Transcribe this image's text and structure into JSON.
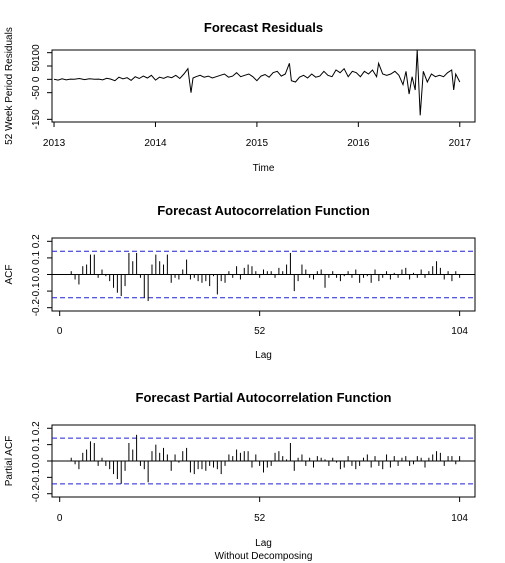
{
  "chart_data": [
    {
      "type": "line",
      "title": "Forecast Residuals",
      "xlabel": "Time",
      "ylabel": "52 Week Period Residuals",
      "xlim": [
        2013,
        2017
      ],
      "ylim": [
        -150,
        110
      ],
      "x_ticks": [
        2013,
        2014,
        2015,
        2016,
        2017
      ],
      "x_tick_labels": [
        "2013",
        "2014",
        "2015",
        "2016",
        "2017"
      ],
      "y_ticks": [
        -150,
        -50,
        0,
        50,
        100
      ],
      "y_tick_labels": [
        "-150",
        "-50",
        "0",
        "50",
        "100"
      ],
      "x": [
        2013.0,
        2013.04,
        2013.08,
        2013.12,
        2013.16,
        2013.2,
        2013.25,
        2013.3,
        2013.35,
        2013.4,
        2013.44,
        2013.48,
        2013.52,
        2013.56,
        2013.6,
        2013.64,
        2013.68,
        2013.72,
        2013.76,
        2013.8,
        2013.84,
        2013.88,
        2013.92,
        2013.96,
        2014.0,
        2014.04,
        2014.08,
        2014.12,
        2014.16,
        2014.2,
        2014.24,
        2014.28,
        2014.32,
        2014.35,
        2014.37,
        2014.4,
        2014.44,
        2014.48,
        2014.52,
        2014.56,
        2014.6,
        2014.64,
        2014.68,
        2014.72,
        2014.76,
        2014.8,
        2014.84,
        2014.88,
        2014.92,
        2014.96,
        2015.0,
        2015.04,
        2015.08,
        2015.12,
        2015.16,
        2015.2,
        2015.24,
        2015.28,
        2015.32,
        2015.34,
        2015.38,
        2015.42,
        2015.46,
        2015.5,
        2015.54,
        2015.58,
        2015.62,
        2015.66,
        2015.7,
        2015.74,
        2015.78,
        2015.82,
        2015.86,
        2015.9,
        2015.94,
        2015.98,
        2016.02,
        2016.06,
        2016.1,
        2016.14,
        2016.18,
        2016.2,
        2016.24,
        2016.28,
        2016.32,
        2016.36,
        2016.4,
        2016.44,
        2016.47,
        2016.5,
        2016.53,
        2016.56,
        2016.58,
        2016.61,
        2016.64,
        2016.68,
        2016.72,
        2016.76,
        2016.8,
        2016.84,
        2016.88,
        2016.92,
        2016.94,
        2016.96,
        2017.0
      ],
      "y": [
        0,
        -3,
        2,
        -2,
        1,
        0,
        3,
        -1,
        2,
        0,
        1,
        -2,
        4,
        1,
        -5,
        8,
        2,
        6,
        -4,
        10,
        3,
        12,
        5,
        15,
        -3,
        8,
        4,
        10,
        6,
        15,
        3,
        20,
        40,
        -50,
        5,
        10,
        15,
        8,
        12,
        5,
        10,
        15,
        20,
        8,
        12,
        25,
        10,
        15,
        20,
        10,
        -5,
        12,
        18,
        8,
        25,
        30,
        12,
        20,
        60,
        -5,
        -10,
        8,
        15,
        5,
        20,
        8,
        12,
        30,
        15,
        10,
        35,
        25,
        40,
        10,
        30,
        25,
        10,
        30,
        20,
        35,
        10,
        60,
        20,
        15,
        20,
        30,
        15,
        -20,
        30,
        -55,
        10,
        -40,
        110,
        -135,
        30,
        -10,
        20,
        10,
        15,
        10,
        25,
        35,
        -40,
        20,
        -10
      ]
    },
    {
      "type": "bar",
      "title": "Forecast Autocorrelation Function",
      "xlabel": "Lag",
      "ylabel": "ACF",
      "xlim": [
        0,
        104
      ],
      "ylim": [
        -0.2,
        0.2
      ],
      "x_ticks": [
        0,
        52,
        104
      ],
      "x_tick_labels": [
        "0",
        "52",
        "104"
      ],
      "y_ticks": [
        -0.2,
        -0.1,
        0.0,
        0.1,
        0.2
      ],
      "y_tick_labels": [
        "-0.2",
        "-0.1",
        "0.0",
        "0.1",
        "0.2"
      ],
      "conf_bound": 0.14,
      "lags": [
        3,
        4,
        5,
        6,
        7,
        8,
        9,
        10,
        11,
        12,
        13,
        14,
        15,
        16,
        17,
        18,
        19,
        20,
        21,
        22,
        23,
        24,
        25,
        26,
        27,
        28,
        29,
        30,
        31,
        32,
        33,
        34,
        35,
        36,
        37,
        38,
        39,
        40,
        41,
        42,
        43,
        44,
        45,
        46,
        47,
        48,
        49,
        50,
        51,
        52,
        53,
        54,
        55,
        56,
        57,
        58,
        59,
        60,
        61,
        62,
        63,
        64,
        65,
        66,
        67,
        68,
        69,
        70,
        71,
        72,
        73,
        74,
        75,
        76,
        77,
        78,
        79,
        80,
        81,
        82,
        83,
        84,
        85,
        86,
        87,
        88,
        89,
        90,
        91,
        92,
        93,
        94,
        95,
        96,
        97,
        98,
        99,
        100,
        101,
        102,
        103,
        104
      ],
      "values": [
        0.02,
        -0.03,
        -0.06,
        0.05,
        0.06,
        0.12,
        0.12,
        -0.02,
        0.03,
        -0.01,
        -0.04,
        -0.08,
        -0.11,
        -0.13,
        -0.07,
        0.13,
        0.08,
        0.13,
        -0.02,
        -0.14,
        -0.16,
        0.06,
        0.12,
        0.08,
        0.06,
        0.12,
        -0.05,
        -0.02,
        -0.03,
        0.03,
        0.09,
        -0.03,
        -0.02,
        -0.04,
        -0.05,
        -0.04,
        -0.07,
        -0.01,
        -0.12,
        -0.04,
        -0.05,
        0.02,
        -0.02,
        0.05,
        -0.03,
        0.04,
        0.06,
        0.05,
        0.02,
        -0.02,
        0.03,
        0.02,
        0.02,
        -0.02,
        0.04,
        0.02,
        0.06,
        0.13,
        -0.1,
        -0.04,
        0.06,
        0.03,
        -0.02,
        -0.03,
        0.02,
        0.03,
        -0.08,
        -0.02,
        0.02,
        -0.02,
        -0.04,
        -0.01,
        0.02,
        -0.02,
        0.03,
        -0.05,
        -0.02,
        -0.01,
        -0.05,
        0.03,
        -0.04,
        -0.02,
        0.02,
        -0.03,
        0.01,
        -0.02,
        0.03,
        0.04,
        -0.03,
        0.01,
        -0.02,
        0.03,
        -0.02,
        0.02,
        0.05,
        0.08,
        0.04,
        -0.03,
        0.02,
        -0.04,
        0.02,
        -0.02
      ]
    },
    {
      "type": "bar",
      "title": "Forecast Partial Autocorrelation Function",
      "xlabel": "Lag",
      "ylabel": "Partial ACF",
      "subtitle": "Without Decomposing",
      "xlim": [
        0,
        104
      ],
      "ylim": [
        -0.2,
        0.2
      ],
      "x_ticks": [
        0,
        52,
        104
      ],
      "x_tick_labels": [
        "0",
        "52",
        "104"
      ],
      "y_ticks": [
        -0.2,
        -0.1,
        0.0,
        0.1,
        0.2
      ],
      "y_tick_labels": [
        "-0.2",
        "-0.1",
        "0.0",
        "0.1",
        "0.2"
      ],
      "conf_bound": 0.14,
      "lags": [
        3,
        4,
        5,
        6,
        7,
        8,
        9,
        10,
        11,
        12,
        13,
        14,
        15,
        16,
        17,
        18,
        19,
        20,
        21,
        22,
        23,
        24,
        25,
        26,
        27,
        28,
        29,
        30,
        31,
        32,
        33,
        34,
        35,
        36,
        37,
        38,
        39,
        40,
        41,
        42,
        43,
        44,
        45,
        46,
        47,
        48,
        49,
        50,
        51,
        52,
        53,
        54,
        55,
        56,
        57,
        58,
        59,
        60,
        61,
        62,
        63,
        64,
        65,
        66,
        67,
        68,
        69,
        70,
        71,
        72,
        73,
        74,
        75,
        76,
        77,
        78,
        79,
        80,
        81,
        82,
        83,
        84,
        85,
        86,
        87,
        88,
        89,
        90,
        91,
        92,
        93,
        94,
        95,
        96,
        97,
        98,
        99,
        100,
        101,
        102,
        103,
        104
      ],
      "values": [
        0.02,
        -0.02,
        -0.05,
        0.05,
        0.07,
        0.12,
        0.11,
        -0.03,
        0.02,
        -0.03,
        -0.05,
        -0.08,
        -0.11,
        -0.14,
        -0.06,
        0.11,
        0.07,
        0.16,
        -0.03,
        -0.05,
        -0.13,
        0.06,
        0.1,
        0.05,
        0.08,
        0.04,
        -0.06,
        0.04,
        -0.01,
        0.06,
        0.08,
        -0.07,
        -0.08,
        -0.05,
        -0.05,
        -0.06,
        -0.03,
        -0.04,
        -0.05,
        -0.08,
        -0.03,
        0.04,
        0.03,
        0.07,
        0.05,
        0.06,
        0.06,
        -0.04,
        0.04,
        -0.03,
        -0.07,
        -0.04,
        -0.03,
        0.05,
        0.06,
        0.03,
        0.01,
        0.11,
        -0.06,
        0.02,
        0.04,
        -0.03,
        0.02,
        -0.04,
        0.03,
        0.02,
        0.01,
        -0.03,
        0.02,
        -0.01,
        -0.05,
        -0.04,
        0.03,
        -0.03,
        -0.05,
        -0.03,
        0.02,
        0.04,
        -0.04,
        0.03,
        -0.03,
        -0.05,
        0.04,
        -0.04,
        0.03,
        -0.03,
        0.02,
        0.03,
        -0.03,
        -0.02,
        0.03,
        0.02,
        -0.04,
        0.02,
        0.04,
        0.06,
        0.05,
        -0.03,
        0.03,
        0.03,
        -0.02,
        0.03
      ]
    }
  ]
}
